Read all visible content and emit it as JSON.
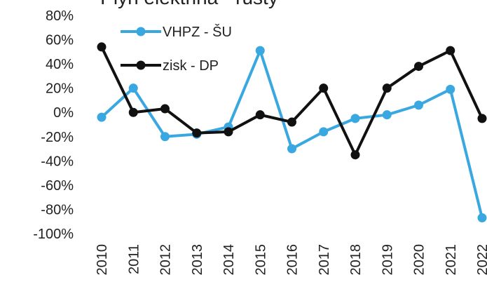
{
  "chart_data": {
    "type": "line",
    "title": "Plyn elektřina - růsty",
    "categories": [
      "2010",
      "2011",
      "2012",
      "2013",
      "2014",
      "2015",
      "2016",
      "2017",
      "2018",
      "2019",
      "2020",
      "2021",
      "2022"
    ],
    "series": [
      {
        "name": "VHPZ - ŠU",
        "color": "#3aa8e0",
        "values": [
          -4,
          20,
          -20,
          -18,
          -12,
          51,
          -30,
          -16,
          -5,
          -2,
          6,
          19,
          -87
        ]
      },
      {
        "name": "zisk - DP",
        "color": "#111111",
        "values": [
          54,
          0,
          3,
          -17,
          -16,
          -2,
          -8,
          20,
          -35,
          20,
          38,
          51,
          -5
        ]
      }
    ],
    "ylim": [
      -100,
      80
    ],
    "yticks": [
      {
        "value": 80,
        "label": "80%"
      },
      {
        "value": 60,
        "label": "60%"
      },
      {
        "value": 40,
        "label": "40%"
      },
      {
        "value": 20,
        "label": "20%"
      },
      {
        "value": 0,
        "label": "0%"
      },
      {
        "value": -20,
        "label": "-20%"
      },
      {
        "value": -40,
        "label": "-40%"
      },
      {
        "value": -60,
        "label": "-60%"
      },
      {
        "value": -80,
        "label": "-80%"
      },
      {
        "value": -100,
        "label": "-100%"
      }
    ],
    "grid": false,
    "legend": "top-left"
  }
}
